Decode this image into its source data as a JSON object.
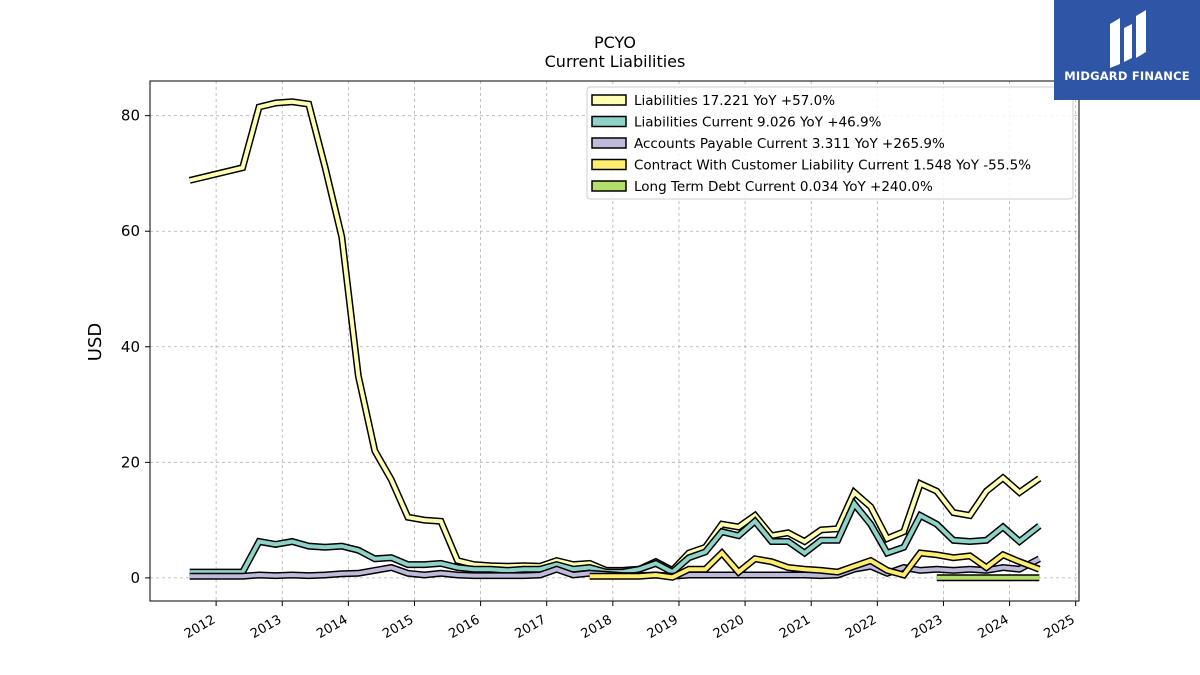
{
  "chart_data": {
    "type": "line",
    "title": "PCYO",
    "subtitle": "Current  Liabilities",
    "ylabel": "USD",
    "ylim": [
      -4,
      86
    ],
    "xlim": [
      2011.0,
      2025.05
    ],
    "yticks": [
      0,
      20,
      40,
      60,
      80
    ],
    "xticks": [
      "2012",
      "2013",
      "2014",
      "2015",
      "2016",
      "2017",
      "2018",
      "2019",
      "2020",
      "2021",
      "2022",
      "2023",
      "2024",
      "2025"
    ],
    "grid": true,
    "legend_position": "top-right",
    "series": [
      {
        "name": "Liabilities",
        "legend": "Liabilities  17.221 YoY +57.0%",
        "color": "#ffffb3",
        "points": [
          [
            2011.6,
            68.8
          ],
          [
            2012.4,
            71.0
          ],
          [
            2012.65,
            81.5
          ],
          [
            2012.9,
            82.2
          ],
          [
            2013.15,
            82.4
          ],
          [
            2013.4,
            82.0
          ],
          [
            2013.65,
            71.0
          ],
          [
            2013.9,
            59.0
          ],
          [
            2014.15,
            35.0
          ],
          [
            2014.4,
            22.0
          ],
          [
            2014.65,
            17.0
          ],
          [
            2014.9,
            10.5
          ],
          [
            2015.15,
            10.0
          ],
          [
            2015.4,
            9.8
          ],
          [
            2015.65,
            3.0
          ],
          [
            2015.9,
            2.3
          ],
          [
            2016.15,
            2.1
          ],
          [
            2016.4,
            2.0
          ],
          [
            2016.65,
            2.1
          ],
          [
            2016.9,
            2.0
          ],
          [
            2017.15,
            3.0
          ],
          [
            2017.4,
            2.3
          ],
          [
            2017.65,
            2.5
          ],
          [
            2017.9,
            1.3
          ],
          [
            2018.15,
            1.3
          ],
          [
            2018.4,
            1.5
          ],
          [
            2018.65,
            2.8
          ],
          [
            2018.9,
            1.3
          ],
          [
            2019.15,
            4.3
          ],
          [
            2019.4,
            5.3
          ],
          [
            2019.65,
            9.3
          ],
          [
            2019.9,
            8.8
          ],
          [
            2020.15,
            10.8
          ],
          [
            2020.4,
            7.3
          ],
          [
            2020.65,
            7.8
          ],
          [
            2020.9,
            6.3
          ],
          [
            2021.15,
            8.3
          ],
          [
            2021.4,
            8.5
          ],
          [
            2021.65,
            14.8
          ],
          [
            2021.9,
            12.3
          ],
          [
            2022.15,
            6.8
          ],
          [
            2022.4,
            8.0
          ],
          [
            2022.65,
            16.3
          ],
          [
            2022.9,
            15.0
          ],
          [
            2023.15,
            11.3
          ],
          [
            2023.4,
            10.8
          ],
          [
            2023.65,
            15.0
          ],
          [
            2023.9,
            17.3
          ],
          [
            2024.15,
            14.8
          ],
          [
            2024.45,
            17.2
          ]
        ]
      },
      {
        "name": "Liabilities Current",
        "legend": "Liabilities Current  9.026 YoY +46.9%",
        "color": "#8dd3c7",
        "points": [
          [
            2011.6,
            1.0
          ],
          [
            2012.4,
            1.0
          ],
          [
            2012.65,
            6.3
          ],
          [
            2012.9,
            5.8
          ],
          [
            2013.15,
            6.3
          ],
          [
            2013.4,
            5.5
          ],
          [
            2013.65,
            5.3
          ],
          [
            2013.9,
            5.5
          ],
          [
            2014.15,
            4.8
          ],
          [
            2014.4,
            3.3
          ],
          [
            2014.65,
            3.5
          ],
          [
            2014.9,
            2.3
          ],
          [
            2015.15,
            2.3
          ],
          [
            2015.4,
            2.5
          ],
          [
            2015.65,
            1.8
          ],
          [
            2015.9,
            1.5
          ],
          [
            2016.15,
            1.5
          ],
          [
            2016.4,
            1.3
          ],
          [
            2016.65,
            1.5
          ],
          [
            2016.9,
            1.5
          ],
          [
            2017.15,
            2.3
          ],
          [
            2017.4,
            1.5
          ],
          [
            2017.65,
            1.8
          ],
          [
            2017.9,
            1.0
          ],
          [
            2018.15,
            1.0
          ],
          [
            2018.4,
            1.5
          ],
          [
            2018.65,
            2.5
          ],
          [
            2018.9,
            1.0
          ],
          [
            2019.15,
            3.5
          ],
          [
            2019.4,
            4.5
          ],
          [
            2019.65,
            8.0
          ],
          [
            2019.9,
            7.3
          ],
          [
            2020.15,
            9.8
          ],
          [
            2020.4,
            6.3
          ],
          [
            2020.65,
            6.3
          ],
          [
            2020.9,
            4.3
          ],
          [
            2021.15,
            6.5
          ],
          [
            2021.4,
            6.5
          ],
          [
            2021.65,
            12.8
          ],
          [
            2021.9,
            9.3
          ],
          [
            2022.15,
            4.3
          ],
          [
            2022.4,
            5.3
          ],
          [
            2022.65,
            10.8
          ],
          [
            2022.9,
            9.3
          ],
          [
            2023.15,
            6.5
          ],
          [
            2023.4,
            6.3
          ],
          [
            2023.65,
            6.5
          ],
          [
            2023.9,
            8.8
          ],
          [
            2024.15,
            6.3
          ],
          [
            2024.45,
            9.0
          ]
        ]
      },
      {
        "name": "Accounts Payable Current",
        "legend": "Accounts Payable Current  3.311 YoY +265.9%",
        "color": "#bebada",
        "points": [
          [
            2011.6,
            0.3
          ],
          [
            2012.4,
            0.3
          ],
          [
            2012.65,
            0.5
          ],
          [
            2012.9,
            0.4
          ],
          [
            2013.15,
            0.5
          ],
          [
            2013.4,
            0.4
          ],
          [
            2013.65,
            0.5
          ],
          [
            2013.9,
            0.7
          ],
          [
            2014.15,
            0.8
          ],
          [
            2014.4,
            1.3
          ],
          [
            2014.65,
            1.8
          ],
          [
            2014.9,
            0.8
          ],
          [
            2015.15,
            0.5
          ],
          [
            2015.4,
            0.8
          ],
          [
            2015.65,
            0.5
          ],
          [
            2015.9,
            0.4
          ],
          [
            2016.15,
            0.4
          ],
          [
            2016.4,
            0.4
          ],
          [
            2016.65,
            0.4
          ],
          [
            2016.9,
            0.5
          ],
          [
            2017.15,
            1.5
          ],
          [
            2017.4,
            0.5
          ],
          [
            2017.65,
            0.8
          ],
          [
            2017.9,
            0.6
          ],
          [
            2018.15,
            0.4
          ],
          [
            2018.4,
            0.4
          ],
          [
            2018.65,
            0.5
          ],
          [
            2018.9,
            0.3
          ],
          [
            2019.15,
            0.5
          ],
          [
            2019.4,
            0.5
          ],
          [
            2019.65,
            0.5
          ],
          [
            2019.9,
            0.5
          ],
          [
            2020.15,
            0.5
          ],
          [
            2020.4,
            0.5
          ],
          [
            2020.65,
            0.5
          ],
          [
            2020.9,
            0.5
          ],
          [
            2021.15,
            0.4
          ],
          [
            2021.4,
            0.5
          ],
          [
            2021.65,
            1.5
          ],
          [
            2021.9,
            2.0
          ],
          [
            2022.15,
            0.8
          ],
          [
            2022.4,
            1.8
          ],
          [
            2022.65,
            1.3
          ],
          [
            2022.9,
            1.5
          ],
          [
            2023.15,
            1.3
          ],
          [
            2023.4,
            1.5
          ],
          [
            2023.65,
            1.3
          ],
          [
            2023.9,
            1.8
          ],
          [
            2024.15,
            1.5
          ],
          [
            2024.45,
            3.3
          ]
        ]
      },
      {
        "name": "Contract With Customer Liability Current",
        "legend": "Contract With Customer Liability Current  1.548 YoY -55.5%",
        "color": "#ffed6f",
        "points": [
          [
            2017.65,
            0.3
          ],
          [
            2018.4,
            0.3
          ],
          [
            2018.65,
            0.5
          ],
          [
            2018.9,
            0.1
          ],
          [
            2019.15,
            1.5
          ],
          [
            2019.4,
            1.5
          ],
          [
            2019.65,
            4.3
          ],
          [
            2019.9,
            1.0
          ],
          [
            2020.15,
            3.3
          ],
          [
            2020.4,
            2.8
          ],
          [
            2020.65,
            1.8
          ],
          [
            2020.9,
            1.5
          ],
          [
            2021.15,
            1.3
          ],
          [
            2021.4,
            1.0
          ],
          [
            2021.65,
            2.0
          ],
          [
            2021.9,
            3.0
          ],
          [
            2022.15,
            1.3
          ],
          [
            2022.4,
            0.5
          ],
          [
            2022.65,
            4.3
          ],
          [
            2022.9,
            4.0
          ],
          [
            2023.15,
            3.5
          ],
          [
            2023.4,
            3.8
          ],
          [
            2023.65,
            1.8
          ],
          [
            2023.9,
            4.0
          ],
          [
            2024.15,
            2.8
          ],
          [
            2024.45,
            1.5
          ]
        ]
      },
      {
        "name": "Long Term Debt Current",
        "legend": "Long Term Debt Current  0.034 YoY +240.0%",
        "color": "#b3de69",
        "points": [
          [
            2022.9,
            0.03
          ],
          [
            2023.15,
            0.03
          ],
          [
            2023.4,
            0.03
          ],
          [
            2023.65,
            0.03
          ],
          [
            2023.9,
            0.03
          ],
          [
            2024.15,
            0.03
          ],
          [
            2024.45,
            0.03
          ]
        ]
      }
    ]
  },
  "logo": {
    "text": "MIDGARD FINANCE",
    "background": "#2e55a6"
  }
}
